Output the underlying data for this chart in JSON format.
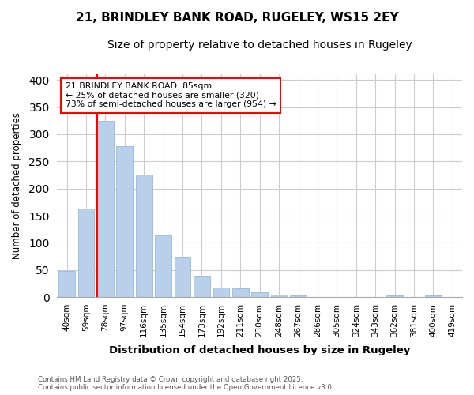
{
  "title": "21, BRINDLEY BANK ROAD, RUGELEY, WS15 2EY",
  "subtitle": "Size of property relative to detached houses in Rugeley",
  "xlabel": "Distribution of detached houses by size in Rugeley",
  "ylabel": "Number of detached properties",
  "bar_labels": [
    "40sqm",
    "59sqm",
    "78sqm",
    "97sqm",
    "116sqm",
    "135sqm",
    "154sqm",
    "173sqm",
    "192sqm",
    "211sqm",
    "230sqm",
    "248sqm",
    "267sqm",
    "286sqm",
    "305sqm",
    "324sqm",
    "343sqm",
    "362sqm",
    "381sqm",
    "400sqm",
    "419sqm"
  ],
  "bar_values": [
    48,
    163,
    325,
    278,
    225,
    113,
    75,
    38,
    17,
    16,
    9,
    5,
    3,
    0,
    0,
    0,
    0,
    3,
    0,
    3,
    0
  ],
  "bar_color": "#b8d0ea",
  "bar_edge_color": "#8ab0d8",
  "red_line_bar_index": 2,
  "annotation_line1": "21 BRINDLEY BANK ROAD: 85sqm",
  "annotation_line2": "← 25% of detached houses are smaller (320)",
  "annotation_line3": "73% of semi-detached houses are larger (954) →",
  "ylim": [
    0,
    410
  ],
  "yticks": [
    0,
    50,
    100,
    150,
    200,
    250,
    300,
    350,
    400
  ],
  "grid_color": "#cccccc",
  "bg_color": "#ffffff",
  "title_fontsize": 11,
  "subtitle_fontsize": 10,
  "footer_line1": "Contains HM Land Registry data © Crown copyright and database right 2025.",
  "footer_line2": "Contains public sector information licensed under the Open Government Licence v3.0."
}
